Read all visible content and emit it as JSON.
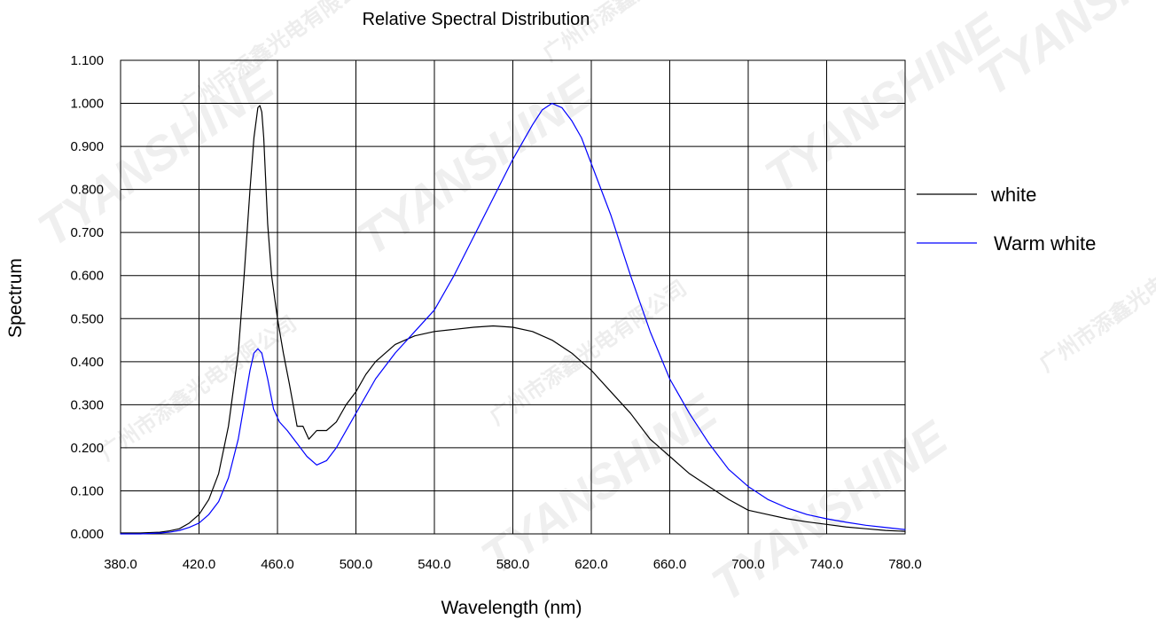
{
  "chart_data": {
    "type": "line",
    "title": "Relative Spectral Distribution",
    "xlabel": "Wavelength (nm)",
    "ylabel": "Spectrum",
    "xlim": [
      380,
      780
    ],
    "ylim": [
      0,
      1.1
    ],
    "x_ticks": [
      "380.0",
      "420.0",
      "460.0",
      "500.0",
      "540.0",
      "580.0",
      "620.0",
      "660.0",
      "700.0",
      "740.0",
      "780.0"
    ],
    "y_ticks": [
      "0.000",
      "0.100",
      "0.200",
      "0.300",
      "0.400",
      "0.500",
      "0.600",
      "0.700",
      "0.800",
      "0.900",
      "1.000",
      "1.100"
    ],
    "grid": true,
    "legend_position": "right",
    "series": [
      {
        "name": "white",
        "color": "#000000",
        "x": [
          380,
          390,
          400,
          405,
          410,
          415,
          420,
          425,
          430,
          435,
          440,
          443,
          446,
          448,
          450,
          451,
          452,
          453,
          455,
          457,
          460,
          463,
          466,
          470,
          473,
          476,
          480,
          485,
          490,
          495,
          500,
          505,
          510,
          520,
          530,
          540,
          550,
          560,
          570,
          580,
          590,
          600,
          610,
          620,
          630,
          640,
          650,
          660,
          670,
          680,
          690,
          700,
          710,
          720,
          730,
          740,
          750,
          760,
          770,
          780
        ],
        "values": [
          0.002,
          0.002,
          0.004,
          0.007,
          0.012,
          0.025,
          0.045,
          0.08,
          0.14,
          0.25,
          0.42,
          0.6,
          0.8,
          0.92,
          0.99,
          0.995,
          0.98,
          0.92,
          0.72,
          0.6,
          0.5,
          0.42,
          0.35,
          0.25,
          0.25,
          0.22,
          0.24,
          0.24,
          0.26,
          0.3,
          0.33,
          0.37,
          0.4,
          0.44,
          0.46,
          0.47,
          0.475,
          0.48,
          0.483,
          0.48,
          0.47,
          0.45,
          0.42,
          0.38,
          0.33,
          0.28,
          0.22,
          0.18,
          0.14,
          0.11,
          0.08,
          0.055,
          0.045,
          0.035,
          0.028,
          0.022,
          0.016,
          0.012,
          0.008,
          0.006
        ]
      },
      {
        "name": "Warm white",
        "color": "#0000ff",
        "x": [
          380,
          390,
          400,
          405,
          410,
          415,
          420,
          425,
          430,
          435,
          440,
          443,
          446,
          448,
          450,
          452,
          455,
          458,
          461,
          465,
          470,
          475,
          480,
          485,
          490,
          500,
          510,
          520,
          530,
          540,
          550,
          560,
          570,
          580,
          590,
          595,
          600,
          605,
          610,
          615,
          620,
          630,
          640,
          650,
          660,
          670,
          680,
          690,
          700,
          710,
          720,
          730,
          740,
          750,
          760,
          770,
          780
        ],
        "values": [
          0.0,
          0.0,
          0.002,
          0.004,
          0.008,
          0.015,
          0.025,
          0.045,
          0.075,
          0.13,
          0.22,
          0.3,
          0.38,
          0.42,
          0.43,
          0.42,
          0.36,
          0.29,
          0.26,
          0.24,
          0.21,
          0.18,
          0.16,
          0.17,
          0.2,
          0.28,
          0.36,
          0.42,
          0.47,
          0.52,
          0.6,
          0.69,
          0.78,
          0.87,
          0.95,
          0.985,
          1.0,
          0.99,
          0.96,
          0.92,
          0.86,
          0.74,
          0.6,
          0.47,
          0.36,
          0.28,
          0.21,
          0.15,
          0.11,
          0.08,
          0.06,
          0.045,
          0.035,
          0.027,
          0.02,
          0.015,
          0.01
        ]
      }
    ]
  },
  "watermarks": {
    "brand": "TYANSHINE",
    "cn": "广州市添鑫光电有限公司"
  }
}
